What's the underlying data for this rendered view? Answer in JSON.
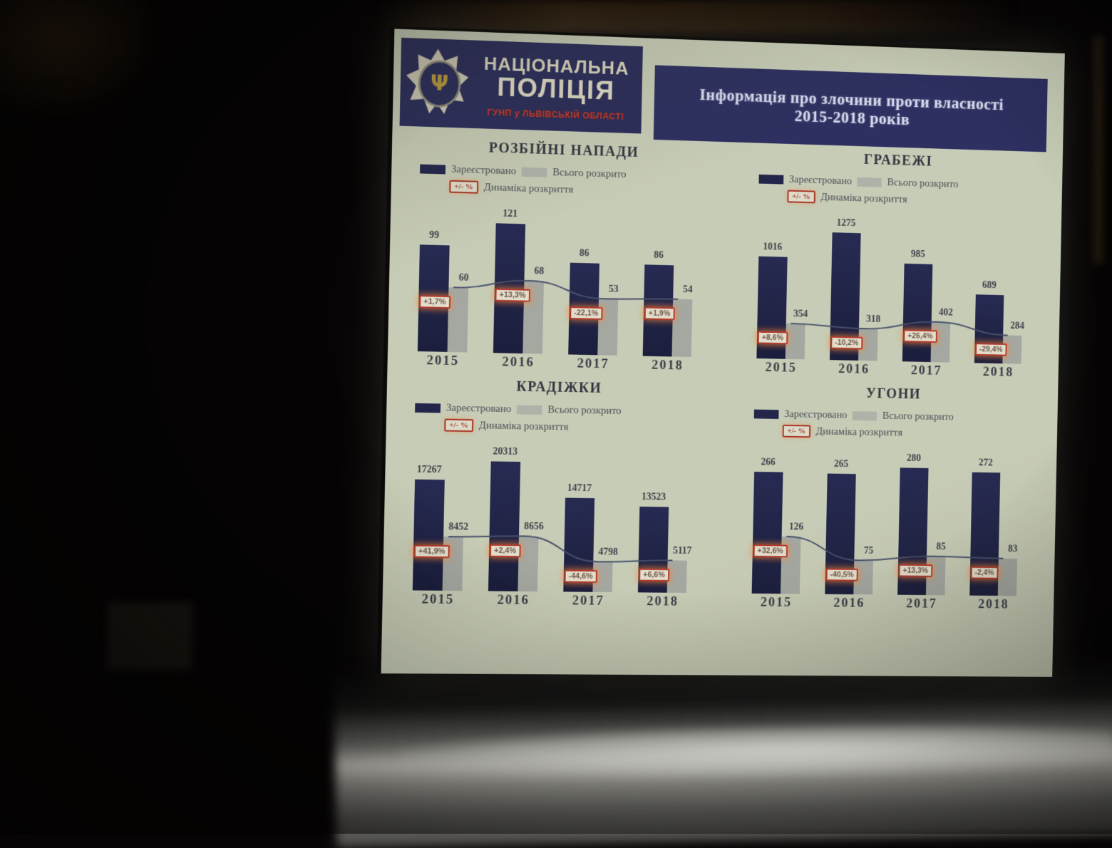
{
  "screen": {
    "org": {
      "line1": "НАЦІОНАЛЬНА",
      "line2": "ПОЛІЦІЯ",
      "subtitle": "ГУНП у ЛЬВІВСЬКІЙ ОБЛАСТІ"
    },
    "title_line1": "Інформація про злочини проти власності",
    "title_line2": "2015-2018 років"
  },
  "legend": {
    "registered": "Зареєстровано",
    "solved": "Всього розкрито",
    "dynamics_box": "+/- %",
    "dynamics": "Динаміка розкриття"
  },
  "colors": {
    "slide_bg": "#c7ccb6",
    "navy_bar": "#23264a",
    "grey_bar": "#9da19d",
    "red_box_border": "#b23a2c",
    "header_navy": "#2d3060"
  },
  "chart_data": [
    {
      "type": "bar",
      "title": "РОЗБІЙНІ НАПАДИ",
      "categories": [
        "2015",
        "2016",
        "2017",
        "2018"
      ],
      "series": [
        {
          "name": "Зареєстровано",
          "values": [
            99,
            121,
            86,
            86
          ]
        },
        {
          "name": "Всього розкрито",
          "values": [
            60,
            68,
            53,
            54
          ]
        }
      ],
      "dynamics_pct": [
        "+1,7%",
        "+13,3%",
        "-22,1%",
        "+1,9%"
      ],
      "legend_position": "top-left",
      "grid": false
    },
    {
      "type": "bar",
      "title": "ГРАБЕЖІ",
      "categories": [
        "2015",
        "2016",
        "2017",
        "2018"
      ],
      "series": [
        {
          "name": "Зареєстровано",
          "values": [
            1016,
            1275,
            985,
            689
          ]
        },
        {
          "name": "Всього розкрито",
          "values": [
            354,
            318,
            402,
            284
          ]
        }
      ],
      "dynamics_pct": [
        "+8,6%",
        "-10,2%",
        "+26,4%",
        "-29,4%"
      ],
      "legend_position": "top-left",
      "grid": false
    },
    {
      "type": "bar",
      "title": "КРАДІЖКИ",
      "categories": [
        "2015",
        "2016",
        "2017",
        "2018"
      ],
      "series": [
        {
          "name": "Зареєстровано",
          "values": [
            17267,
            20313,
            14717,
            13523
          ]
        },
        {
          "name": "Всього розкрито",
          "values": [
            8452,
            8656,
            4798,
            5117
          ]
        }
      ],
      "dynamics_pct": [
        "+41,9%",
        "+2,4%",
        "-44,6%",
        "+6,6%"
      ],
      "legend_position": "top-left",
      "grid": false
    },
    {
      "type": "bar",
      "title": "УГОНИ",
      "categories": [
        "2015",
        "2016",
        "2017",
        "2018"
      ],
      "series": [
        {
          "name": "Зареєстровано",
          "values": [
            266,
            265,
            280,
            272
          ]
        },
        {
          "name": "Всього розкрито",
          "values": [
            126,
            75,
            85,
            83
          ]
        }
      ],
      "dynamics_pct": [
        "+32,6%",
        "-40,5%",
        "+13,3%",
        "-2,4%"
      ],
      "legend_position": "top-left",
      "grid": false
    }
  ]
}
